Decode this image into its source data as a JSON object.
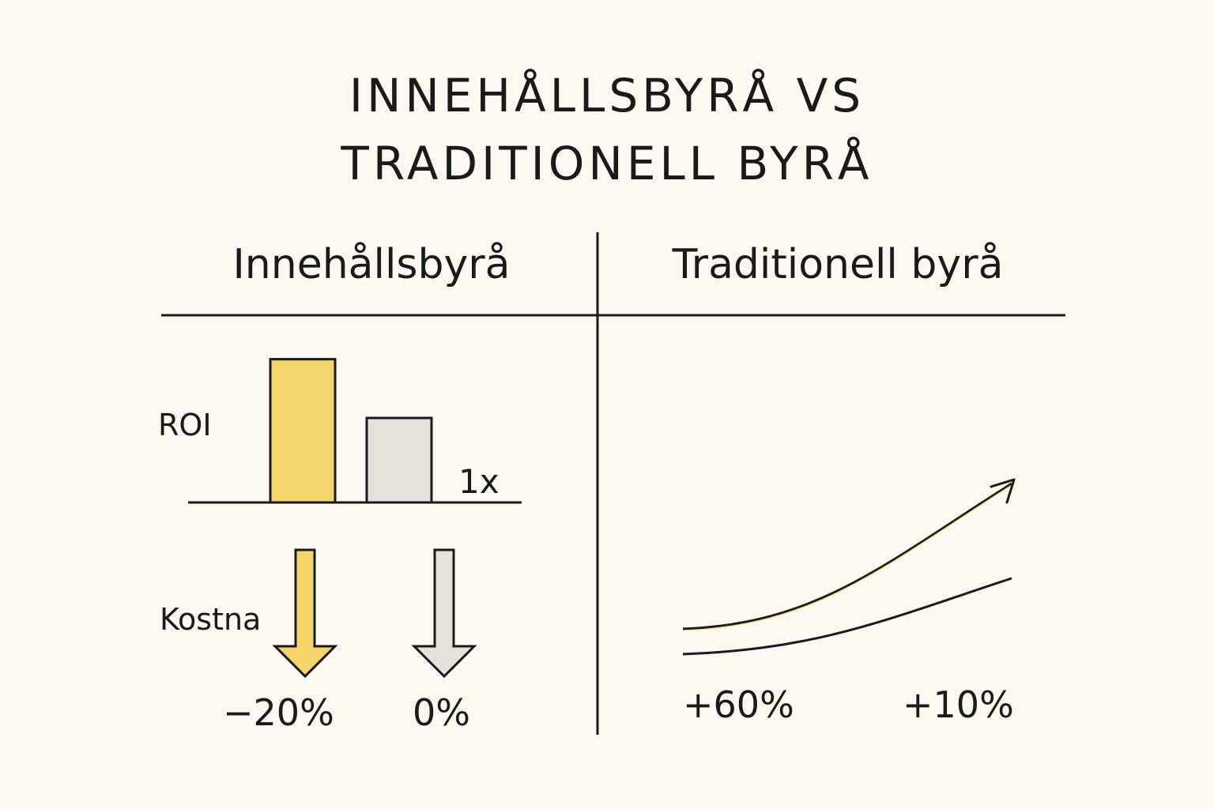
{
  "title_lines": [
    "INNEHÅLLSBYRÅ VS",
    "TRADITIONELL BYRÅ"
  ],
  "columns": [
    "Innehållsbyrå",
    "Traditionell byrå"
  ],
  "colors": {
    "innehallsbyra": "#f5d469",
    "traditionell": "#e4e1da",
    "ink": "#1a1a1a",
    "background": "#fbf8f1"
  },
  "chart_data": [
    {
      "type": "bar",
      "ylabel": "ROI",
      "categories": [
        "Innehållsbyrå",
        "Traditionell byrå"
      ],
      "values": [
        3.9,
        2.3
      ],
      "reference_label": "1x"
    },
    {
      "type": "bar",
      "ylabel": "Kostna",
      "categories": [
        "Innehållsbyrå",
        "Traditionell byrå"
      ],
      "values": [
        -20,
        0
      ],
      "value_labels": [
        "−20%",
        "0%"
      ]
    },
    {
      "type": "line",
      "series": [
        {
          "values": [
            0,
            60
          ],
          "end_label": "+60%"
        },
        {
          "values": [
            0,
            10
          ],
          "end_label": "+10%"
        }
      ]
    }
  ]
}
